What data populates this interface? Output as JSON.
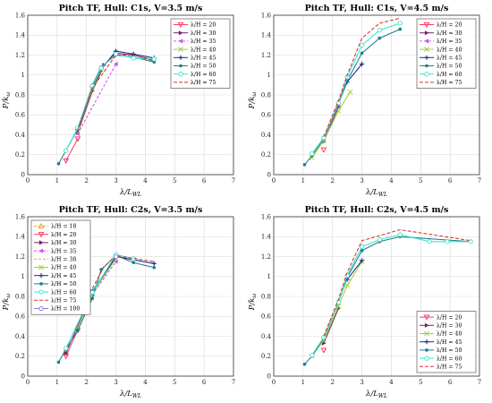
{
  "figure": {
    "background": "#ffffff"
  },
  "series_styles": {
    "18": {
      "label": "λ/H = 18",
      "color": "#e8a33a",
      "dash": "3,2",
      "marker": "tri-up-open"
    },
    "20": {
      "label": "λ/H = 20",
      "color": "#ff3b6b",
      "dash": "",
      "marker": "tri-down-open"
    },
    "30": {
      "label": "λ/H = 30",
      "color": "#7a1f6e",
      "dash": "",
      "marker": "tri-right-fill"
    },
    "35": {
      "label": "λ/H = 35",
      "color": "#d24ff2",
      "dash": "3,2",
      "marker": "tri-left-fill"
    },
    "38": {
      "label": "λ/H = 38",
      "color": "#e8a33a",
      "dash": "3,2",
      "marker": "none"
    },
    "40": {
      "label": "λ/H = 40",
      "color": "#9ad431",
      "dash": "",
      "marker": "x"
    },
    "45": {
      "label": "λ/H = 45",
      "color": "#1c2a8a",
      "dash": "",
      "marker": "plus"
    },
    "50": {
      "label": "λ/H = 50",
      "color": "#1a7f8e",
      "dash": "",
      "marker": "dot"
    },
    "60": {
      "label": "λ/H = 60",
      "color": "#39e6d0",
      "dash": "",
      "marker": "circle-open"
    },
    "75": {
      "label": "λ/H = 75",
      "color": "#d8342b",
      "dash": "4,2",
      "marker": "none"
    },
    "100": {
      "label": "λ/H = 100",
      "color": "#8a7ad8",
      "dash": "",
      "marker": "circle-open"
    }
  },
  "chart_data": [
    {
      "type": "line",
      "title": "Pitch TF, Hull: C1s, V=3.5 m/s",
      "xlabel": "λ/L_WL",
      "ylabel": "P/k_ω",
      "xlim": [
        0,
        7
      ],
      "ylim": [
        0,
        1.6
      ],
      "xticks": [
        "0",
        "1",
        "2",
        "3",
        "4",
        "5",
        "6",
        "7"
      ],
      "yticks": [
        "0",
        "0.2",
        "0.4",
        "0.6",
        "0.8",
        "1",
        "1.2",
        "1.4",
        "1.6"
      ],
      "grid": true,
      "legend": "top-right",
      "series": [
        {
          "key": "20",
          "name": "λ/H = 20",
          "points": [
            [
              1.3,
              0.14
            ],
            [
              1.7,
              0.36
            ]
          ]
        },
        {
          "key": "30",
          "name": "λ/H = 30",
          "points": [
            [
              1.7,
              0.42
            ],
            [
              2.2,
              0.84
            ],
            [
              2.6,
              1.1
            ],
            [
              3.0,
              1.22
            ],
            [
              3.6,
              1.2
            ],
            [
              4.3,
              1.15
            ]
          ]
        },
        {
          "key": "35",
          "name": "λ/H = 35",
          "points": [
            [
              1.7,
              0.41
            ],
            [
              3.0,
              1.11
            ]
          ]
        },
        {
          "key": "40",
          "name": "λ/H = 40",
          "points": [
            [
              1.7,
              0.44
            ],
            [
              2.2,
              0.86
            ],
            [
              2.5,
              1.05
            ]
          ]
        },
        {
          "key": "45",
          "name": "λ/H = 45",
          "points": [
            [
              1.7,
              0.45
            ],
            [
              2.2,
              0.88
            ],
            [
              2.5,
              1.06
            ],
            [
              3.0,
              1.24
            ],
            [
              3.6,
              1.21
            ],
            [
              4.3,
              1.17
            ]
          ]
        },
        {
          "key": "50",
          "name": "λ/H = 50",
          "points": [
            [
              1.05,
              0.11
            ],
            [
              1.3,
              0.24
            ],
            [
              1.7,
              0.46
            ],
            [
              2.2,
              0.9
            ],
            [
              2.5,
              1.08
            ],
            [
              3.0,
              1.2
            ],
            [
              3.6,
              1.18
            ],
            [
              4.3,
              1.13
            ]
          ]
        },
        {
          "key": "60",
          "name": "λ/H = 60",
          "points": [
            [
              1.3,
              0.24
            ],
            [
              1.7,
              0.47
            ],
            [
              2.2,
              0.89
            ],
            [
              2.5,
              1.07
            ],
            [
              3.0,
              1.21
            ],
            [
              3.6,
              1.17
            ],
            [
              4.3,
              1.16
            ]
          ]
        },
        {
          "key": "75",
          "name": "λ/H = 75",
          "points": [
            [
              1.7,
              0.45
            ],
            [
              2.2,
              0.87
            ],
            [
              3.0,
              1.2
            ],
            [
              3.6,
              1.2
            ],
            [
              4.3,
              1.14
            ]
          ]
        }
      ]
    },
    {
      "type": "line",
      "title": "Pitch TF, Hull: C1s, V=4.5 m/s",
      "xlabel": "λ/L_WL",
      "ylabel": "P/k_ω",
      "xlim": [
        0,
        7
      ],
      "ylim": [
        0,
        1.6
      ],
      "xticks": [
        "0",
        "1",
        "2",
        "3",
        "4",
        "5",
        "6",
        "7"
      ],
      "yticks": [
        "0",
        "0.2",
        "0.4",
        "0.6",
        "0.8",
        "1",
        "1.2",
        "1.4",
        "1.6"
      ],
      "grid": true,
      "legend": "top-right",
      "series": [
        {
          "key": "20",
          "name": "λ/H = 20",
          "points": [
            [
              1.7,
              0.25
            ]
          ]
        },
        {
          "key": "30",
          "name": "λ/H = 30",
          "points": [
            [
              1.7,
              0.33
            ],
            [
              2.2,
              0.68
            ]
          ]
        },
        {
          "key": "35",
          "name": "λ/H = 35",
          "points": [
            [
              1.7,
              0.34
            ],
            [
              2.2,
              0.7
            ]
          ]
        },
        {
          "key": "40",
          "name": "λ/H = 40",
          "points": [
            [
              1.3,
              0.17
            ],
            [
              1.7,
              0.34
            ],
            [
              2.2,
              0.64
            ],
            [
              2.6,
              0.83
            ]
          ]
        },
        {
          "key": "45",
          "name": "λ/H = 45",
          "points": [
            [
              2.2,
              0.72
            ],
            [
              2.5,
              0.93
            ],
            [
              3.0,
              1.11
            ]
          ]
        },
        {
          "key": "50",
          "name": "λ/H = 50",
          "points": [
            [
              1.05,
              0.1
            ],
            [
              1.3,
              0.19
            ],
            [
              1.7,
              0.36
            ],
            [
              2.2,
              0.71
            ],
            [
              2.5,
              0.94
            ],
            [
              3.0,
              1.22
            ],
            [
              3.6,
              1.37
            ],
            [
              4.3,
              1.46
            ]
          ]
        },
        {
          "key": "60",
          "name": "λ/H = 60",
          "points": [
            [
              1.3,
              0.21
            ],
            [
              1.7,
              0.37
            ],
            [
              2.2,
              0.72
            ],
            [
              2.5,
              0.98
            ],
            [
              3.0,
              1.3
            ],
            [
              3.6,
              1.45
            ],
            [
              4.3,
              1.52
            ]
          ]
        },
        {
          "key": "75",
          "name": "λ/H = 75",
          "points": [
            [
              1.7,
              0.38
            ],
            [
              2.2,
              0.74
            ],
            [
              2.5,
              1.0
            ],
            [
              3.0,
              1.37
            ],
            [
              3.6,
              1.52
            ],
            [
              4.3,
              1.57
            ]
          ]
        }
      ]
    },
    {
      "type": "line",
      "title": "Pitch TF, Hull: C2s, V=3.5 m/s",
      "xlabel": "λ/L_WL",
      "ylabel": "P/k_ω",
      "xlim": [
        0,
        7
      ],
      "ylim": [
        0,
        1.6
      ],
      "xticks": [
        "0",
        "1",
        "2",
        "3",
        "4",
        "5",
        "6",
        "7"
      ],
      "yticks": [
        "0",
        "0.2",
        "0.4",
        "0.6",
        "0.8",
        "1",
        "1.2",
        "1.4",
        "1.6"
      ],
      "grid": true,
      "legend": "top-left",
      "series": [
        {
          "key": "18",
          "name": "λ/H = 18",
          "points": [
            [
              1.3,
              0.26
            ]
          ]
        },
        {
          "key": "20",
          "name": "λ/H = 20",
          "points": [
            [
              1.3,
              0.2
            ],
            [
              1.7,
              0.46
            ]
          ]
        },
        {
          "key": "30",
          "name": "λ/H = 30",
          "points": [
            [
              1.3,
              0.23
            ],
            [
              2.2,
              0.85
            ],
            [
              3.0,
              1.19
            ]
          ]
        },
        {
          "key": "35",
          "name": "λ/H = 35",
          "points": [
            [
              2.2,
              0.82
            ],
            [
              3.0,
              1.15
            ]
          ]
        },
        {
          "key": "38",
          "name": "λ/H = 38",
          "points": [
            [
              1.7,
              0.47
            ],
            [
              2.2,
              0.8
            ]
          ]
        },
        {
          "key": "40",
          "name": "λ/H = 40",
          "points": [
            [
              1.7,
              0.47
            ],
            [
              2.2,
              0.83
            ],
            [
              3.0,
              1.18
            ]
          ]
        },
        {
          "key": "45",
          "name": "λ/H = 45",
          "points": [
            [
              2.2,
              0.85
            ],
            [
              3.0,
              1.2
            ],
            [
              4.3,
              1.13
            ]
          ]
        },
        {
          "key": "50",
          "name": "λ/H = 50",
          "points": [
            [
              1.05,
              0.14
            ],
            [
              1.3,
              0.27
            ],
            [
              1.7,
              0.46
            ],
            [
              2.2,
              0.78
            ],
            [
              2.5,
              1.07
            ],
            [
              3.0,
              1.21
            ],
            [
              3.6,
              1.14
            ],
            [
              4.3,
              1.09
            ]
          ]
        },
        {
          "key": "60",
          "name": "λ/H = 60",
          "points": [
            [
              1.3,
              0.28
            ],
            [
              2.2,
              0.84
            ],
            [
              3.0,
              1.22
            ],
            [
              3.6,
              1.18
            ]
          ]
        },
        {
          "key": "75",
          "name": "λ/H = 75",
          "points": [
            [
              2.2,
              0.88
            ],
            [
              2.6,
              1.1
            ],
            [
              3.0,
              1.21
            ],
            [
              4.3,
              1.15
            ]
          ]
        },
        {
          "key": "100",
          "name": "λ/H = 100",
          "points": [
            [
              3.0,
              1.2
            ]
          ]
        }
      ]
    },
    {
      "type": "line",
      "title": "Pitch TF, Hull: C2s, V=4.5 m/s",
      "xlabel": "λ/L_WL",
      "ylabel": "P/k_ω",
      "xlim": [
        0,
        7
      ],
      "ylim": [
        0,
        1.6
      ],
      "xticks": [
        "0",
        "1",
        "2",
        "3",
        "4",
        "5",
        "6",
        "7"
      ],
      "yticks": [
        "0",
        "0.2",
        "0.4",
        "0.6",
        "0.8",
        "1",
        "1.2",
        "1.4",
        "1.6"
      ],
      "grid": true,
      "legend": "bottom-right",
      "series": [
        {
          "key": "20",
          "name": "λ/H = 20",
          "points": [
            [
              1.7,
              0.26
            ]
          ]
        },
        {
          "key": "30",
          "name": "λ/H = 30",
          "points": [
            [
              1.7,
              0.33
            ],
            [
              2.2,
              0.68
            ]
          ]
        },
        {
          "key": "40",
          "name": "λ/H = 40",
          "points": [
            [
              1.3,
              0.2
            ],
            [
              1.7,
              0.36
            ],
            [
              2.2,
              0.7
            ],
            [
              2.5,
              0.91
            ],
            [
              3.0,
              1.15
            ]
          ]
        },
        {
          "key": "45",
          "name": "λ/H = 45",
          "points": [
            [
              2.5,
              0.97
            ],
            [
              3.0,
              1.16
            ]
          ]
        },
        {
          "key": "50",
          "name": "λ/H = 50",
          "points": [
            [
              1.05,
              0.12
            ],
            [
              1.3,
              0.2
            ],
            [
              1.7,
              0.38
            ],
            [
              2.2,
              0.74
            ],
            [
              2.5,
              0.99
            ],
            [
              3.0,
              1.26
            ],
            [
              3.6,
              1.35
            ],
            [
              4.3,
              1.4
            ],
            [
              6.7,
              1.35
            ]
          ]
        },
        {
          "key": "60",
          "name": "λ/H = 60",
          "points": [
            [
              1.3,
              0.21
            ],
            [
              1.7,
              0.39
            ],
            [
              2.2,
              0.74
            ],
            [
              2.5,
              1.01
            ],
            [
              3.0,
              1.3
            ],
            [
              3.6,
              1.37
            ],
            [
              4.3,
              1.42
            ],
            [
              5.3,
              1.35
            ],
            [
              5.9,
              1.35
            ],
            [
              6.7,
              1.35
            ]
          ]
        },
        {
          "key": "75",
          "name": "λ/H = 75",
          "points": [
            [
              1.7,
              0.4
            ],
            [
              2.2,
              0.77
            ],
            [
              2.5,
              1.04
            ],
            [
              3.0,
              1.36
            ],
            [
              3.6,
              1.41
            ],
            [
              4.3,
              1.47
            ],
            [
              6.7,
              1.36
            ]
          ]
        }
      ]
    }
  ]
}
